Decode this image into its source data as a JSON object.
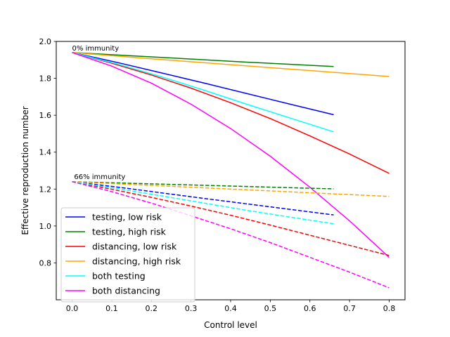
{
  "chart_data": {
    "type": "line",
    "title": "",
    "xlabel": "Control level",
    "ylabel": "Effective reproduction number",
    "xlim": [
      -0.04,
      0.84
    ],
    "ylim": [
      0.6,
      2.0
    ],
    "xticks": [
      0.0,
      0.1,
      0.2,
      0.3,
      0.4,
      0.5,
      0.6,
      0.7,
      0.8
    ],
    "xtick_labels": [
      "0.0",
      "0.1",
      "0.2",
      "0.3",
      "0.4",
      "0.5",
      "0.6",
      "0.7",
      "0.8"
    ],
    "yticks": [
      0.8,
      1.0,
      1.2,
      1.4,
      1.6,
      1.8,
      2.0
    ],
    "ytick_labels": [
      "0.8",
      "1.0",
      "1.2",
      "1.4",
      "1.6",
      "1.8",
      "2.0"
    ],
    "grid": false,
    "legend_position": "lower-left",
    "annotations": [
      {
        "text": "0% immunity",
        "x": 0.0,
        "y": 1.95
      },
      {
        "text": "66% immunity",
        "x": 0.005,
        "y": 1.255
      }
    ],
    "series": [
      {
        "name": "testing, low risk",
        "color": "#0000ff",
        "dash": false,
        "legend": true,
        "x": [
          0,
          0.11,
          0.22,
          0.33,
          0.44,
          0.55,
          0.66
        ],
        "y": [
          1.94,
          1.888,
          1.832,
          1.776,
          1.718,
          1.66,
          1.603
        ]
      },
      {
        "name": "testing, high risk",
        "color": "#008000",
        "dash": false,
        "legend": true,
        "x": [
          0,
          0.22,
          0.44,
          0.66
        ],
        "y": [
          1.94,
          1.914,
          1.888,
          1.864
        ]
      },
      {
        "name": "distancing, low risk",
        "color": "#ff0000",
        "dash": false,
        "legend": true,
        "x": [
          0,
          0.1,
          0.2,
          0.3,
          0.4,
          0.5,
          0.6,
          0.7,
          0.8
        ],
        "y": [
          1.94,
          1.882,
          1.818,
          1.747,
          1.668,
          1.582,
          1.488,
          1.39,
          1.285
        ]
      },
      {
        "name": "distancing, high risk",
        "color": "#ffa500",
        "dash": false,
        "legend": true,
        "x": [
          0,
          0.2,
          0.4,
          0.6,
          0.8
        ],
        "y": [
          1.94,
          1.906,
          1.874,
          1.842,
          1.81
        ]
      },
      {
        "name": "both testing",
        "color": "#00ffff",
        "dash": false,
        "legend": true,
        "x": [
          0,
          0.11,
          0.22,
          0.33,
          0.44,
          0.55,
          0.66
        ],
        "y": [
          1.94,
          1.88,
          1.812,
          1.738,
          1.66,
          1.585,
          1.51
        ]
      },
      {
        "name": "both distancing",
        "color": "#ff00ff",
        "dash": false,
        "legend": true,
        "x": [
          0,
          0.1,
          0.2,
          0.3,
          0.4,
          0.5,
          0.6,
          0.7,
          0.8
        ],
        "y": [
          1.94,
          1.866,
          1.774,
          1.66,
          1.528,
          1.378,
          1.21,
          1.028,
          0.83
        ]
      },
      {
        "name": "testing, low risk (66% immunity)",
        "color": "#0000ff",
        "dash": true,
        "legend": false,
        "x": [
          0,
          0.11,
          0.22,
          0.33,
          0.44,
          0.55,
          0.66
        ],
        "y": [
          1.24,
          1.212,
          1.181,
          1.15,
          1.12,
          1.09,
          1.06
        ]
      },
      {
        "name": "testing, high risk (66% immunity)",
        "color": "#008000",
        "dash": true,
        "legend": false,
        "x": [
          0,
          0.22,
          0.44,
          0.66
        ],
        "y": [
          1.24,
          1.227,
          1.214,
          1.201
        ]
      },
      {
        "name": "distancing, low risk (66% immunity)",
        "color": "#ff0000",
        "dash": true,
        "legend": false,
        "x": [
          0,
          0.1,
          0.2,
          0.3,
          0.4,
          0.5,
          0.6,
          0.7,
          0.8
        ],
        "y": [
          1.24,
          1.199,
          1.155,
          1.108,
          1.058,
          1.005,
          0.95,
          0.895,
          0.84
        ]
      },
      {
        "name": "distancing, high risk (66% immunity)",
        "color": "#ffa500",
        "dash": true,
        "legend": false,
        "x": [
          0,
          0.2,
          0.4,
          0.6,
          0.8
        ],
        "y": [
          1.24,
          1.22,
          1.2,
          1.18,
          1.16
        ]
      },
      {
        "name": "both testing (66% immunity)",
        "color": "#00ffff",
        "dash": true,
        "legend": false,
        "x": [
          0,
          0.11,
          0.22,
          0.33,
          0.44,
          0.55,
          0.66
        ],
        "y": [
          1.24,
          1.204,
          1.165,
          1.125,
          1.085,
          1.048,
          1.012
        ]
      },
      {
        "name": "both distancing (66% immunity)",
        "color": "#ff00ff",
        "dash": true,
        "legend": false,
        "x": [
          0,
          0.1,
          0.2,
          0.3,
          0.4,
          0.5,
          0.6,
          0.7,
          0.8
        ],
        "y": [
          1.24,
          1.186,
          1.124,
          1.055,
          0.985,
          0.91,
          0.83,
          0.75,
          0.665
        ]
      }
    ]
  }
}
